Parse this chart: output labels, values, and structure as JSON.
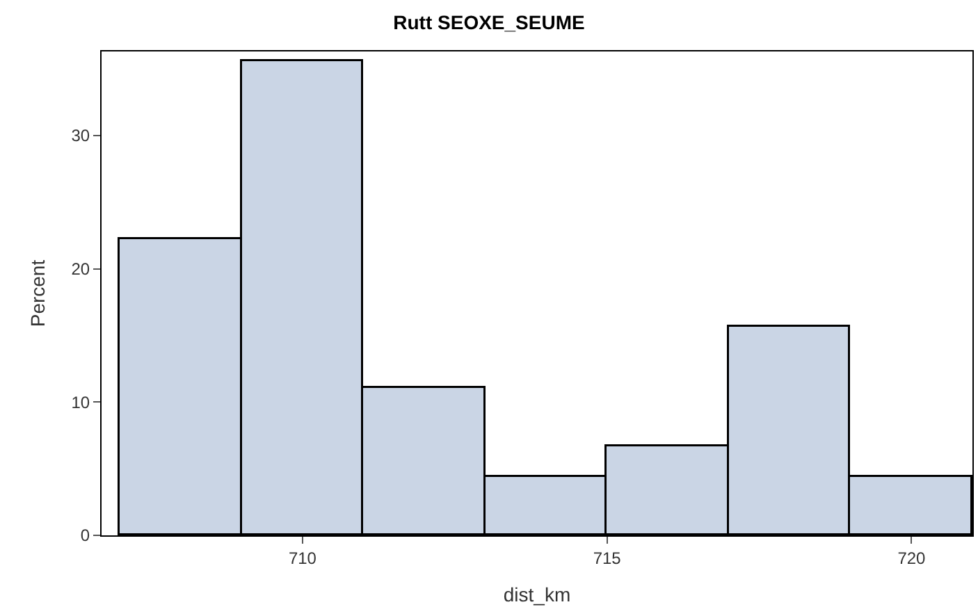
{
  "chart_data": {
    "type": "histogram",
    "title": "Rutt SEOXE_SEUME",
    "xlabel": "dist_km",
    "ylabel": "Percent",
    "bins": [
      707,
      709,
      711,
      713,
      715,
      717,
      719,
      721
    ],
    "values": [
      22.2,
      35.6,
      11.1,
      4.4,
      6.7,
      15.6,
      4.4
    ],
    "color": "#cad5e5",
    "xlim": [
      706.7,
      721
    ],
    "xticks": [
      710,
      715,
      720
    ],
    "ylim": [
      0,
      36.3
    ],
    "yticks": [
      0,
      10,
      20,
      30
    ]
  }
}
